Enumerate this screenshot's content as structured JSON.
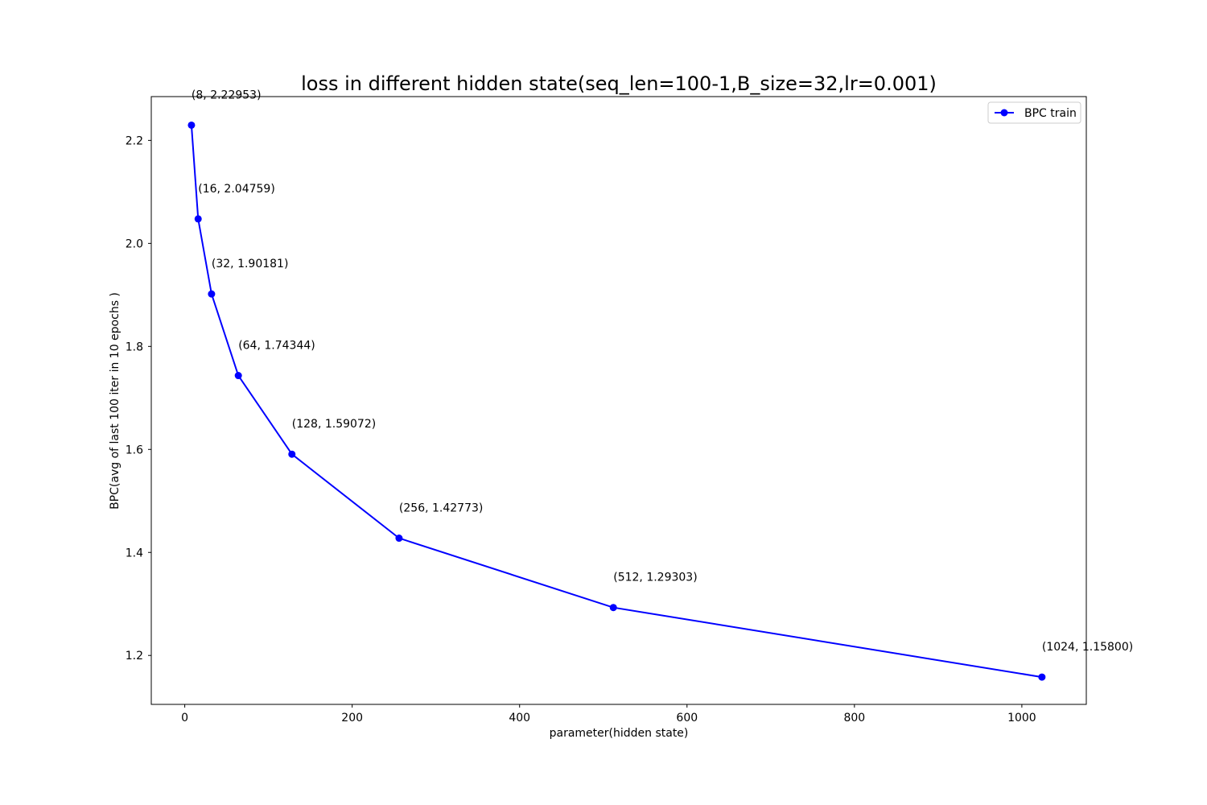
{
  "chart_data": {
    "type": "line",
    "title": "loss in different hidden state(seq_len=100-1,B_size=32,lr=0.001)",
    "xlabel": "parameter(hidden state)",
    "ylabel": "BPC(avg of last 100 iter in 10 epochs )",
    "xlim": [
      -40,
      1077
    ],
    "ylim": [
      1.105,
      2.285
    ],
    "xticks": [
      0,
      200,
      400,
      600,
      800,
      1000
    ],
    "xtick_labels": [
      "0",
      "200",
      "400",
      "600",
      "800",
      "1000"
    ],
    "yticks": [
      1.2,
      1.4,
      1.6,
      1.8,
      2.0,
      2.2
    ],
    "ytick_labels": [
      "1.2",
      "1.4",
      "1.6",
      "1.8",
      "2.0",
      "2.2"
    ],
    "grid": false,
    "legend_position": "top-right",
    "series": [
      {
        "name": "BPC train",
        "color": "#0000ff",
        "marker": "circle",
        "x": [
          8,
          16,
          32,
          64,
          128,
          256,
          512,
          1024
        ],
        "y": [
          2.22953,
          2.04759,
          1.90181,
          1.74344,
          1.59072,
          1.42773,
          1.29303,
          1.158
        ]
      }
    ],
    "annotations": [
      "(8, 2.22953)",
      "(16, 2.04759)",
      "(32, 1.90181)",
      "(64, 1.74344)",
      "(128, 1.59072)",
      "(256, 1.42773)",
      "(512, 1.29303)",
      "(1024, 1.15800)"
    ]
  }
}
